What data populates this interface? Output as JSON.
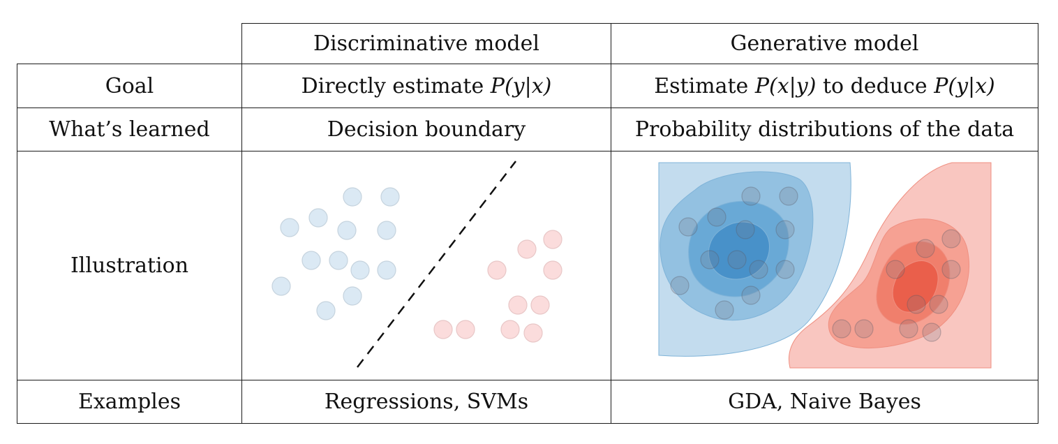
{
  "headers": {
    "corner": "",
    "discriminative": "Discriminative model",
    "generative": "Generative model"
  },
  "rows": {
    "goal": {
      "label": "Goal",
      "discriminative": {
        "prefix": "Directly estimate ",
        "math": "P(y|x)"
      },
      "generative": {
        "prefix": "Estimate ",
        "math1": "P(x|y)",
        "middle": " to deduce ",
        "math2": "P(y|x)"
      }
    },
    "learned": {
      "label": "What’s learned",
      "discriminative": "Decision boundary",
      "generative": "Probability distributions of the data"
    },
    "illustration": {
      "label": "Illustration"
    },
    "examples": {
      "label": "Examples",
      "discriminative": "Regressions, SVMs",
      "generative": "GDA, Naive Bayes"
    }
  },
  "colors": {
    "blue_point": "#dbe9f4",
    "red_point": "#fbdcdc",
    "blue_contour": [
      "#c3dcee",
      "#93c1e1",
      "#69a9d6",
      "#4891c9"
    ],
    "red_contour": [
      "#f9c6c0",
      "#f6a193",
      "#f07f6c",
      "#ea5f4b"
    ]
  }
}
